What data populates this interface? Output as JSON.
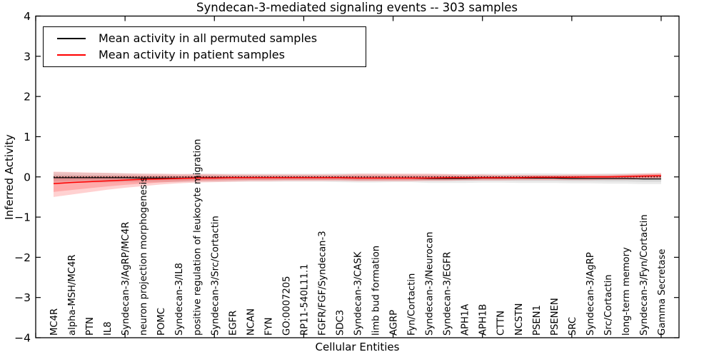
{
  "page": {
    "background": "#ffffff"
  },
  "chart_data": {
    "type": "line",
    "title": "Syndecan-3-mediated signaling events -- 303 samples",
    "xlabel": "Cellular Entities",
    "ylabel": "Inferred Activity",
    "ylim": [
      -4,
      4
    ],
    "yticks": [
      -4,
      -3,
      -2,
      -1,
      0,
      1,
      2,
      3,
      4
    ],
    "x_major_tick_step": 5,
    "grid": "off",
    "categories": [
      "MC4R",
      "alpha-MSH/MC4R",
      "PTN",
      "IL8",
      "Syndecan-3/AgRP/MC4R",
      "neuron projection morphogenesis",
      "POMC",
      "Syndecan-3/IL8",
      "positive regulation of leukocyte migration",
      "Syndecan-3/Src/Cortactin",
      "EGFR",
      "NCAN",
      "FYN",
      "GO:0007205",
      "RP11-540L11.1",
      "FGFR/FGF/Syndecan-3",
      "SDC3",
      "Syndecan-3/CASK",
      "limb bud formation",
      "AGRP",
      "Fyn/Cortactin",
      "Syndecan-3/Neurocan",
      "Syndecan-3/EGFR",
      "APH1A",
      "APH1B",
      "CTTN",
      "NCSTN",
      "PSEN1",
      "PSENEN",
      "SRC",
      "Syndecan-3/AgRP",
      "Src/Cortactin",
      "long-term memory",
      "Syndecan-3/Fyn/Cortactin",
      "Gamma Secretase"
    ],
    "series": [
      {
        "name": "Mean activity in all permuted samples",
        "color": "#000000",
        "band_color": "#000000",
        "band_opacity": 0.08,
        "values": [
          -0.02,
          -0.02,
          -0.02,
          -0.02,
          -0.02,
          -0.03,
          -0.03,
          -0.03,
          -0.02,
          -0.02,
          -0.02,
          -0.02,
          -0.02,
          -0.02,
          -0.02,
          -0.02,
          -0.02,
          -0.03,
          -0.03,
          -0.03,
          -0.03,
          -0.04,
          -0.04,
          -0.04,
          -0.03,
          -0.03,
          -0.03,
          -0.03,
          -0.03,
          -0.04,
          -0.04,
          -0.04,
          -0.04,
          -0.05,
          -0.05
        ],
        "band_halfwidth": [
          0.14,
          0.13,
          0.12,
          0.12,
          0.11,
          0.11,
          0.1,
          0.1,
          0.1,
          0.1,
          0.1,
          0.1,
          0.1,
          0.1,
          0.1,
          0.1,
          0.11,
          0.11,
          0.11,
          0.1,
          0.1,
          0.11,
          0.11,
          0.11,
          0.11,
          0.11,
          0.12,
          0.12,
          0.12,
          0.12,
          0.12,
          0.13,
          0.13,
          0.13,
          0.13
        ]
      },
      {
        "name": "Mean activity in patient samples",
        "color": "#ff0000",
        "band_color": "#ff0000",
        "band_opacity": 0.18,
        "values": [
          -0.17,
          -0.14,
          -0.12,
          -0.1,
          -0.08,
          -0.06,
          -0.05,
          -0.04,
          -0.03,
          -0.03,
          -0.02,
          -0.02,
          -0.02,
          -0.02,
          -0.02,
          -0.02,
          -0.02,
          -0.03,
          -0.03,
          -0.03,
          -0.03,
          -0.03,
          -0.02,
          -0.02,
          -0.02,
          -0.02,
          -0.02,
          -0.01,
          -0.01,
          -0.01,
          0.0,
          0.0,
          0.01,
          0.02,
          0.03
        ],
        "band_top": [
          0.13,
          0.12,
          0.11,
          0.1,
          0.09,
          0.08,
          0.08,
          0.07,
          0.07,
          0.07,
          0.06,
          0.06,
          0.06,
          0.06,
          0.06,
          0.06,
          0.06,
          0.08,
          0.08,
          0.08,
          0.08,
          0.08,
          0.07,
          0.06,
          0.06,
          0.05,
          0.05,
          0.05,
          0.05,
          0.06,
          0.06,
          0.06,
          0.07,
          0.09,
          0.1
        ],
        "band_bottom": [
          -0.5,
          -0.44,
          -0.38,
          -0.32,
          -0.27,
          -0.23,
          -0.19,
          -0.16,
          -0.14,
          -0.13,
          -0.12,
          -0.11,
          -0.11,
          -0.1,
          -0.1,
          -0.1,
          -0.1,
          -0.11,
          -0.11,
          -0.11,
          -0.11,
          -0.1,
          -0.1,
          -0.09,
          -0.09,
          -0.09,
          -0.08,
          -0.08,
          -0.08,
          -0.08,
          -0.08,
          -0.07,
          -0.07,
          -0.06,
          -0.05
        ]
      }
    ],
    "zero_line": {
      "y": 0,
      "style": "dotted",
      "color": "#000000"
    },
    "legend": {
      "position": "upper-left",
      "entries": [
        {
          "label": "Mean activity in all permuted samples",
          "color": "#000000"
        },
        {
          "label": "Mean activity in patient samples",
          "color": "#ff0000"
        }
      ]
    }
  }
}
